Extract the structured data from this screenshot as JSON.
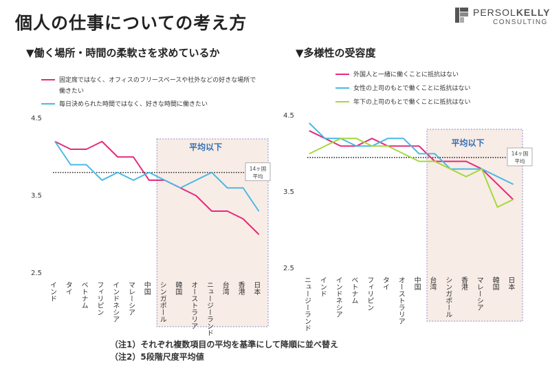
{
  "page_title": "個人の仕事についての考え方",
  "logo": {
    "name_part1": "PERSOL",
    "name_part2": "KELLY",
    "sub": "CONSULTING"
  },
  "notes": [
    "（注1）それぞれ複数項目の平均を基準にして降順に並べ替え",
    "（注2）5段階尺度平均値"
  ],
  "colors": {
    "pink": "#e6297a",
    "blue": "#49b8e6",
    "green": "#a3d93d",
    "shade_fill": "#f8ece6",
    "shade_border": "#8a8ac8"
  },
  "chart_data": [
    {
      "type": "line",
      "title": "▼働く場所・時間の柔軟さを求めているか",
      "categories": [
        "インド",
        "タイ",
        "ベトナム",
        "フィリピン",
        "インドネシア",
        "マレーシア",
        "中国",
        "シンガポール",
        "韓国",
        "オーストラリア",
        "ニュージーランド",
        "台湾",
        "香港",
        "日本"
      ],
      "ylim": [
        2.5,
        4.5
      ],
      "yticks": [
        "4.5",
        "3.5",
        "2.5"
      ],
      "series": [
        {
          "name": "固定席ではなく、オフィスのフリースペースや社外などの好きな場所で働きたい",
          "color": "#e6297a",
          "values": [
            4.2,
            4.1,
            4.1,
            4.2,
            4.0,
            4.0,
            3.7,
            3.7,
            3.6,
            3.5,
            3.3,
            3.3,
            3.2,
            3.0
          ]
        },
        {
          "name": "毎日決められた時間ではなく、好きな時間に働きたい",
          "color": "#49b8e6",
          "values": [
            4.2,
            3.9,
            3.9,
            3.7,
            3.8,
            3.7,
            3.8,
            3.7,
            3.6,
            3.7,
            3.8,
            3.6,
            3.6,
            3.3
          ]
        }
      ],
      "reference_line": {
        "value": 3.8,
        "label": "14ヶ国平均"
      },
      "shaded_region": {
        "from_index": 7,
        "to_index": 13,
        "label": "平均以下"
      }
    },
    {
      "type": "line",
      "title": "▼多様性の受容度",
      "categories": [
        "ニュージーランド",
        "インド",
        "インドネシア",
        "ベトナム",
        "フィリピン",
        "タイ",
        "オーストラリア",
        "中国",
        "台湾",
        "シンガポール",
        "香港",
        "マレーシア",
        "韓国",
        "日本"
      ],
      "ylim": [
        2.5,
        4.5
      ],
      "yticks": [
        "4.5",
        "3.5",
        "2.5"
      ],
      "series": [
        {
          "name": "外国人と一緒に働くことに抵抗はない",
          "color": "#e6297a",
          "values": [
            4.3,
            4.2,
            4.1,
            4.1,
            4.2,
            4.1,
            4.1,
            4.1,
            3.9,
            3.9,
            3.9,
            3.8,
            3.6,
            3.4
          ]
        },
        {
          "name": "女性の上司のもとで働くことに抵抗はない",
          "color": "#49b8e6",
          "values": [
            4.4,
            4.2,
            4.2,
            4.1,
            4.1,
            4.2,
            4.2,
            4.0,
            4.0,
            3.8,
            3.8,
            3.8,
            3.7,
            3.6
          ]
        },
        {
          "name": "年下の上司のもとで働くことに抵抗はない",
          "color": "#a3d93d",
          "values": [
            4.0,
            4.1,
            4.2,
            4.2,
            4.1,
            4.1,
            4.0,
            3.9,
            3.9,
            3.8,
            3.7,
            3.8,
            3.3,
            3.4
          ]
        }
      ],
      "reference_line": {
        "value": 3.95,
        "label": "14ヶ国平均"
      },
      "shaded_region": {
        "from_index": 8,
        "to_index": 13,
        "label": "平均以下"
      }
    }
  ]
}
